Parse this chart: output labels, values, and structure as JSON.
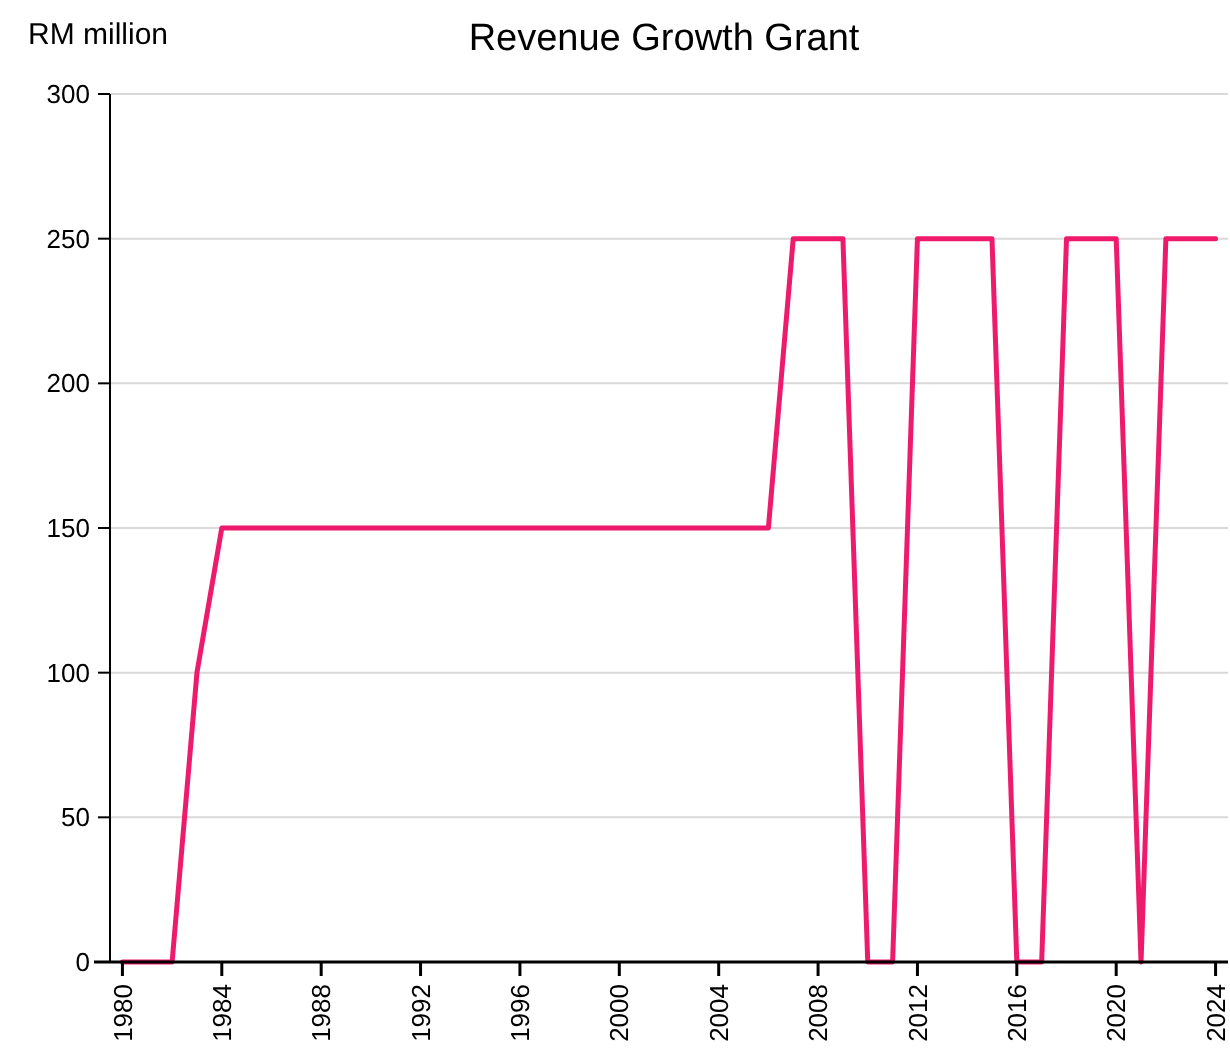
{
  "chart_data": {
    "type": "line",
    "title": "Revenue Growth Grant",
    "ylabel": "RM million",
    "x": [
      1980,
      1981,
      1982,
      1983,
      1984,
      1985,
      1986,
      1987,
      1988,
      1989,
      1990,
      1991,
      1992,
      1993,
      1994,
      1995,
      1996,
      1997,
      1998,
      1999,
      2000,
      2001,
      2002,
      2003,
      2004,
      2005,
      2006,
      2007,
      2008,
      2009,
      2010,
      2011,
      2012,
      2013,
      2014,
      2015,
      2016,
      2017,
      2018,
      2019,
      2020,
      2021,
      2022,
      2023,
      2024
    ],
    "series": [
      {
        "color": "#ee1b6c",
        "values": [
          0,
          0,
          0,
          100,
          150,
          150,
          150,
          150,
          150,
          150,
          150,
          150,
          150,
          150,
          150,
          150,
          150,
          150,
          150,
          150,
          150,
          150,
          150,
          150,
          150,
          150,
          150,
          250,
          250,
          250,
          0,
          0,
          250,
          250,
          250,
          250,
          0,
          0,
          250,
          250,
          250,
          0,
          250,
          250,
          250
        ]
      }
    ],
    "xlim": [
      1979.5,
      2024.5
    ],
    "xticks": [
      1980,
      1984,
      1988,
      1992,
      1996,
      2000,
      2004,
      2008,
      2012,
      2016,
      2020,
      2024
    ],
    "ylim": [
      0,
      300
    ],
    "yticks": [
      0,
      50,
      100,
      150,
      200,
      250,
      300
    ],
    "grid": "y",
    "marker": "none",
    "line_style": "solid"
  }
}
